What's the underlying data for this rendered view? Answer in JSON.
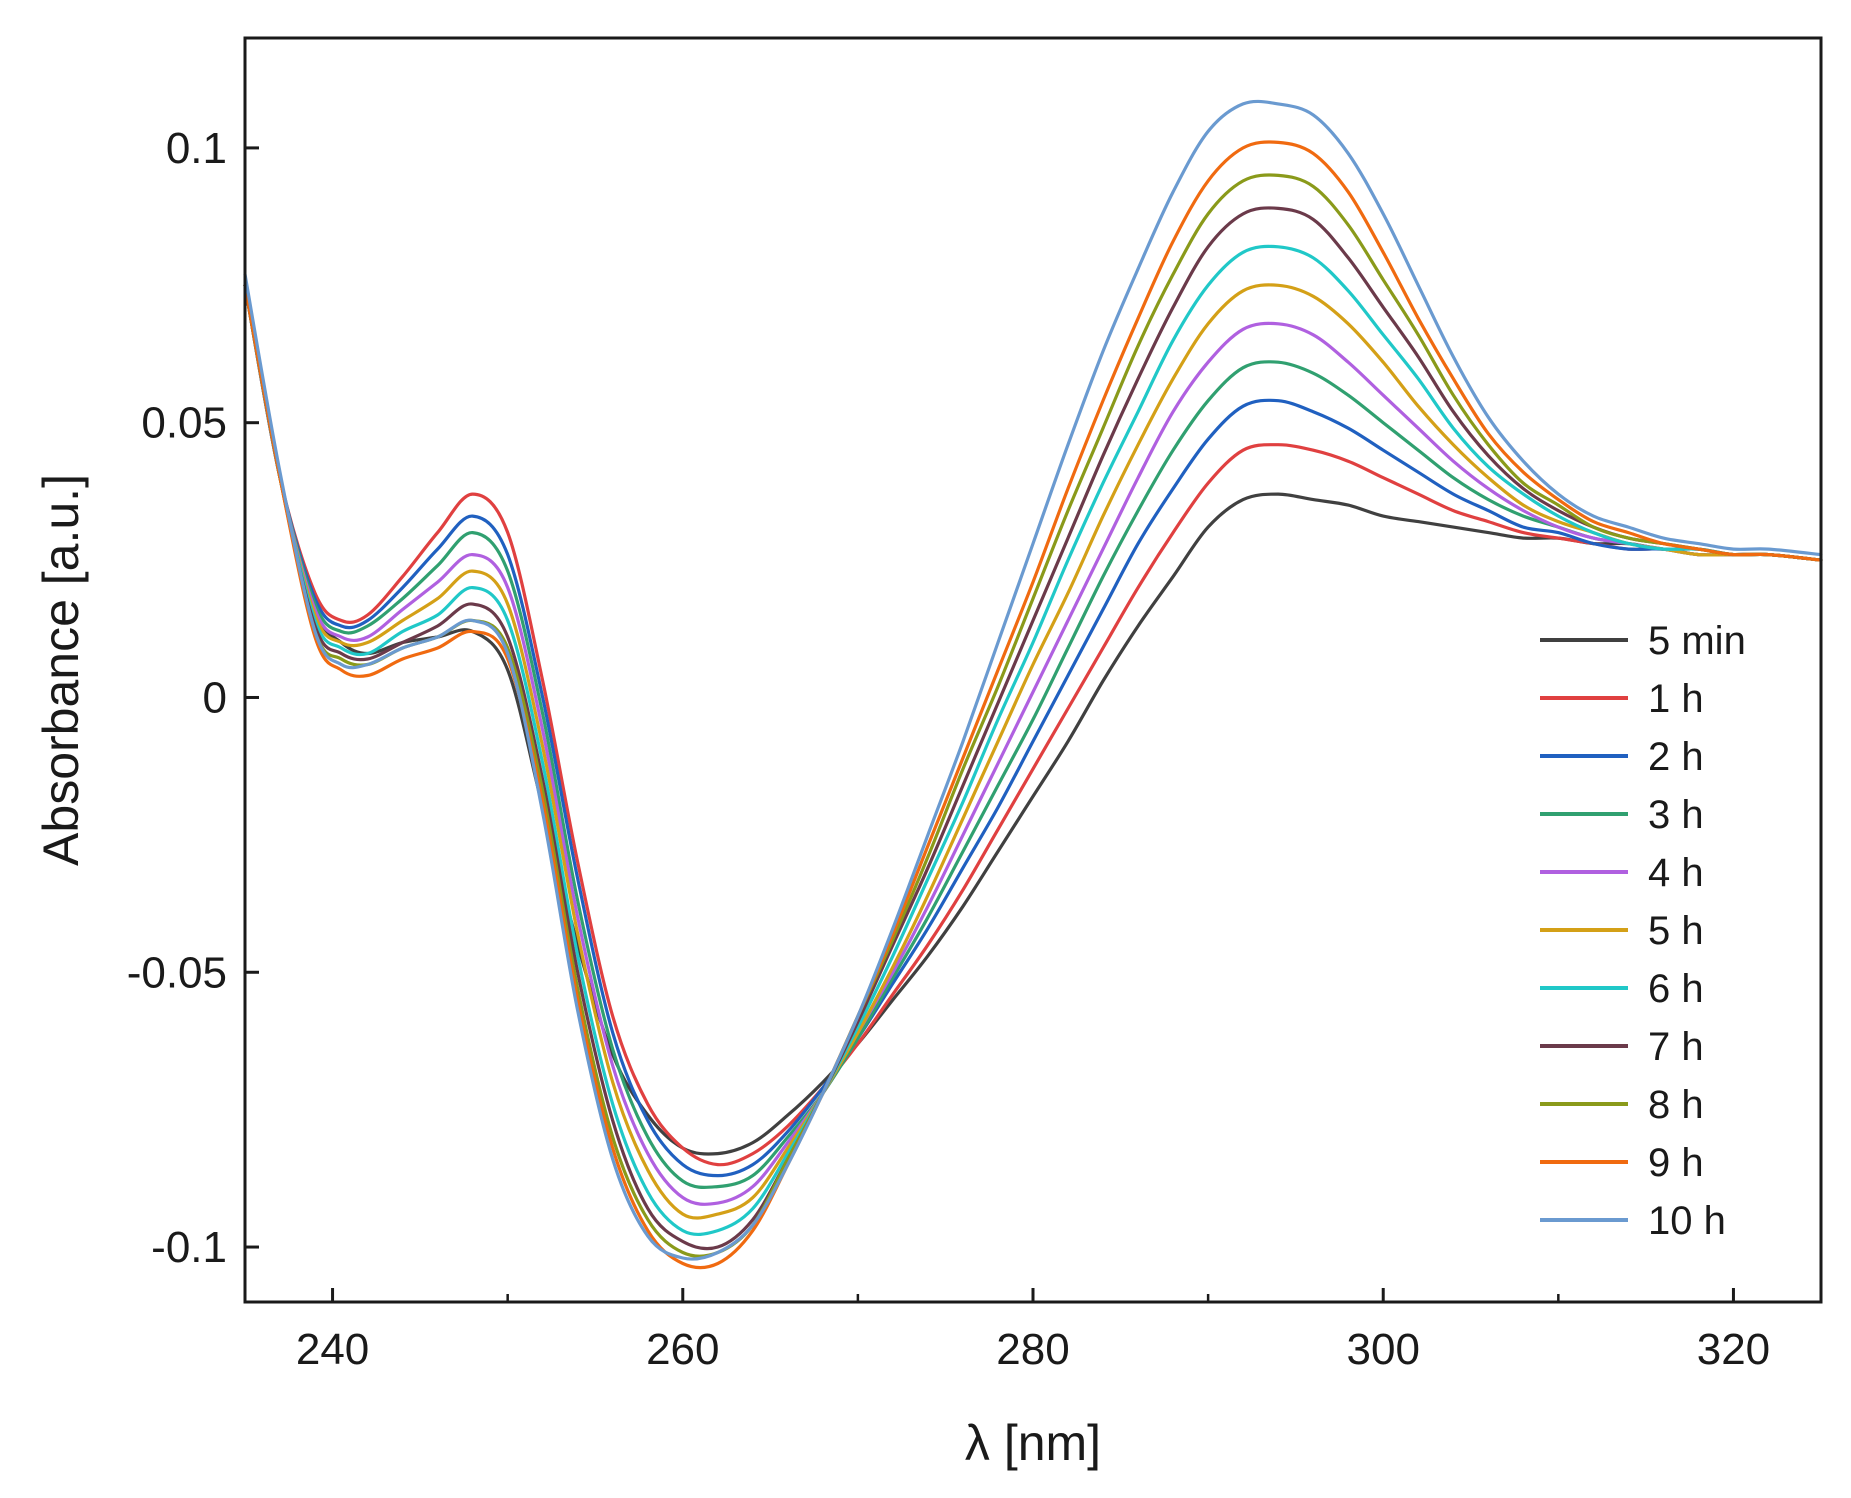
{
  "chart_data": {
    "type": "line",
    "title": "",
    "xlabel": "λ [nm]",
    "ylabel": "Absorbance [a.u.]",
    "xlim": [
      235,
      325
    ],
    "ylim": [
      -0.11,
      0.12
    ],
    "x_ticks": [
      240,
      260,
      280,
      300,
      320
    ],
    "x_minor_ticks": [
      250,
      270,
      290,
      310
    ],
    "y_ticks": [
      -0.1,
      -0.05,
      0,
      0.05,
      0.1
    ],
    "y_tick_labels": [
      "-0.1",
      "-0.05",
      "0",
      "0.05",
      "0.1"
    ],
    "legend_position": "lower-right",
    "grid": false,
    "x": [
      235,
      237,
      239,
      240.5,
      242,
      244,
      246,
      248,
      250,
      252,
      254,
      256,
      258,
      260,
      262,
      264,
      266,
      268,
      270,
      272,
      274,
      276,
      278,
      280,
      282,
      284,
      286,
      288,
      290,
      292,
      294,
      296,
      298,
      300,
      302,
      304,
      306,
      308,
      310,
      312,
      314,
      316,
      318,
      320,
      322,
      325
    ],
    "series": [
      {
        "name": "5 min",
        "color": "#404040",
        "values": [
          0.075,
          0.04,
          0.016,
          0.01,
          0.008,
          0.01,
          0.011,
          0.012,
          0.005,
          -0.02,
          -0.045,
          -0.065,
          -0.076,
          -0.082,
          -0.083,
          -0.081,
          -0.076,
          -0.07,
          -0.063,
          -0.055,
          -0.047,
          -0.038,
          -0.028,
          -0.018,
          -0.008,
          0.003,
          0.013,
          0.022,
          0.031,
          0.036,
          0.037,
          0.036,
          0.035,
          0.033,
          0.032,
          0.031,
          0.03,
          0.029,
          0.029,
          0.028,
          0.028,
          0.027,
          0.027,
          0.026,
          0.026,
          0.025
        ]
      },
      {
        "name": "1 h",
        "color": "#e04040",
        "values": [
          0.075,
          0.04,
          0.019,
          0.014,
          0.015,
          0.022,
          0.03,
          0.037,
          0.03,
          0.003,
          -0.03,
          -0.058,
          -0.074,
          -0.082,
          -0.085,
          -0.083,
          -0.078,
          -0.071,
          -0.063,
          -0.054,
          -0.045,
          -0.035,
          -0.024,
          -0.013,
          -0.002,
          0.009,
          0.02,
          0.03,
          0.039,
          0.045,
          0.046,
          0.045,
          0.043,
          0.04,
          0.037,
          0.034,
          0.032,
          0.03,
          0.029,
          0.028,
          0.027,
          0.027,
          0.026,
          0.026,
          0.026,
          0.025
        ]
      },
      {
        "name": "2 h",
        "color": "#2060c0",
        "values": [
          0.075,
          0.04,
          0.018,
          0.013,
          0.014,
          0.02,
          0.027,
          0.033,
          0.026,
          0.0,
          -0.033,
          -0.061,
          -0.077,
          -0.085,
          -0.087,
          -0.085,
          -0.079,
          -0.071,
          -0.062,
          -0.052,
          -0.042,
          -0.031,
          -0.02,
          -0.008,
          0.004,
          0.016,
          0.028,
          0.038,
          0.047,
          0.053,
          0.054,
          0.052,
          0.049,
          0.045,
          0.041,
          0.037,
          0.034,
          0.031,
          0.03,
          0.028,
          0.027,
          0.027,
          0.026,
          0.026,
          0.026,
          0.025
        ]
      },
      {
        "name": "3 h",
        "color": "#30a070",
        "values": [
          0.075,
          0.04,
          0.017,
          0.012,
          0.013,
          0.018,
          0.024,
          0.03,
          0.023,
          -0.003,
          -0.037,
          -0.064,
          -0.08,
          -0.088,
          -0.089,
          -0.087,
          -0.08,
          -0.072,
          -0.062,
          -0.051,
          -0.04,
          -0.028,
          -0.016,
          -0.004,
          0.009,
          0.022,
          0.034,
          0.045,
          0.054,
          0.06,
          0.061,
          0.059,
          0.055,
          0.05,
          0.045,
          0.04,
          0.036,
          0.033,
          0.031,
          0.029,
          0.028,
          0.027,
          0.026,
          0.026,
          0.026,
          0.025
        ]
      },
      {
        "name": "4 h",
        "color": "#b060e0",
        "values": [
          0.075,
          0.04,
          0.016,
          0.011,
          0.011,
          0.016,
          0.021,
          0.026,
          0.02,
          -0.006,
          -0.04,
          -0.067,
          -0.083,
          -0.091,
          -0.092,
          -0.089,
          -0.081,
          -0.072,
          -0.061,
          -0.05,
          -0.038,
          -0.025,
          -0.012,
          0.001,
          0.014,
          0.027,
          0.04,
          0.052,
          0.061,
          0.067,
          0.068,
          0.066,
          0.061,
          0.055,
          0.049,
          0.043,
          0.038,
          0.034,
          0.031,
          0.029,
          0.028,
          0.027,
          0.026,
          0.026,
          0.026,
          0.025
        ]
      },
      {
        "name": "5 h",
        "color": "#d4a017",
        "values": [
          0.075,
          0.04,
          0.015,
          0.01,
          0.01,
          0.014,
          0.018,
          0.023,
          0.017,
          -0.009,
          -0.043,
          -0.07,
          -0.086,
          -0.094,
          -0.094,
          -0.091,
          -0.082,
          -0.072,
          -0.061,
          -0.049,
          -0.036,
          -0.022,
          -0.008,
          0.006,
          0.019,
          0.033,
          0.046,
          0.058,
          0.068,
          0.074,
          0.075,
          0.073,
          0.068,
          0.061,
          0.053,
          0.046,
          0.04,
          0.035,
          0.032,
          0.03,
          0.028,
          0.027,
          0.026,
          0.026,
          0.026,
          0.025
        ]
      },
      {
        "name": "6 h",
        "color": "#20c8c8",
        "values": [
          0.075,
          0.04,
          0.014,
          0.009,
          0.008,
          0.012,
          0.015,
          0.02,
          0.014,
          -0.012,
          -0.047,
          -0.074,
          -0.09,
          -0.097,
          -0.097,
          -0.093,
          -0.083,
          -0.072,
          -0.06,
          -0.047,
          -0.033,
          -0.019,
          -0.004,
          0.01,
          0.025,
          0.039,
          0.052,
          0.065,
          0.075,
          0.081,
          0.082,
          0.08,
          0.074,
          0.066,
          0.058,
          0.049,
          0.042,
          0.037,
          0.033,
          0.03,
          0.028,
          0.027,
          0.027,
          0.026,
          0.026,
          0.025
        ]
      },
      {
        "name": "7 h",
        "color": "#6b3a4a",
        "values": [
          0.075,
          0.04,
          0.013,
          0.008,
          0.007,
          0.01,
          0.013,
          0.017,
          0.011,
          -0.015,
          -0.05,
          -0.077,
          -0.093,
          -0.099,
          -0.1,
          -0.095,
          -0.084,
          -0.072,
          -0.059,
          -0.045,
          -0.031,
          -0.016,
          -0.001,
          0.014,
          0.029,
          0.044,
          0.058,
          0.071,
          0.082,
          0.088,
          0.089,
          0.087,
          0.08,
          0.071,
          0.062,
          0.052,
          0.044,
          0.038,
          0.034,
          0.031,
          0.029,
          0.028,
          0.027,
          0.026,
          0.026,
          0.025
        ]
      },
      {
        "name": "8 h",
        "color": "#8a9a1a",
        "values": [
          0.075,
          0.04,
          0.012,
          0.007,
          0.006,
          0.009,
          0.011,
          0.014,
          0.009,
          -0.017,
          -0.053,
          -0.08,
          -0.095,
          -0.101,
          -0.101,
          -0.096,
          -0.084,
          -0.072,
          -0.058,
          -0.044,
          -0.029,
          -0.013,
          0.002,
          0.018,
          0.034,
          0.049,
          0.064,
          0.077,
          0.088,
          0.094,
          0.095,
          0.093,
          0.086,
          0.076,
          0.066,
          0.055,
          0.046,
          0.039,
          0.035,
          0.031,
          0.029,
          0.028,
          0.027,
          0.026,
          0.026,
          0.025
        ]
      },
      {
        "name": "9 h",
        "color": "#f06a10",
        "values": [
          0.075,
          0.04,
          0.011,
          0.005,
          0.004,
          0.007,
          0.009,
          0.012,
          0.007,
          -0.019,
          -0.055,
          -0.082,
          -0.097,
          -0.103,
          -0.103,
          -0.097,
          -0.085,
          -0.072,
          -0.058,
          -0.043,
          -0.027,
          -0.011,
          0.005,
          0.021,
          0.038,
          0.054,
          0.069,
          0.083,
          0.094,
          0.1,
          0.101,
          0.099,
          0.092,
          0.081,
          0.069,
          0.058,
          0.048,
          0.041,
          0.036,
          0.032,
          0.03,
          0.028,
          0.027,
          0.026,
          0.026,
          0.025
        ]
      },
      {
        "name": "10 h",
        "color": "#6a9ad0",
        "values": [
          0.077,
          0.041,
          0.012,
          0.006,
          0.006,
          0.009,
          0.011,
          0.014,
          0.008,
          -0.021,
          -0.057,
          -0.084,
          -0.098,
          -0.102,
          -0.101,
          -0.096,
          -0.085,
          -0.072,
          -0.058,
          -0.042,
          -0.025,
          -0.008,
          0.01,
          0.028,
          0.046,
          0.063,
          0.078,
          0.092,
          0.103,
          0.108,
          0.108,
          0.106,
          0.099,
          0.088,
          0.075,
          0.062,
          0.051,
          0.043,
          0.037,
          0.033,
          0.031,
          0.029,
          0.028,
          0.027,
          0.027,
          0.026
        ]
      }
    ]
  }
}
